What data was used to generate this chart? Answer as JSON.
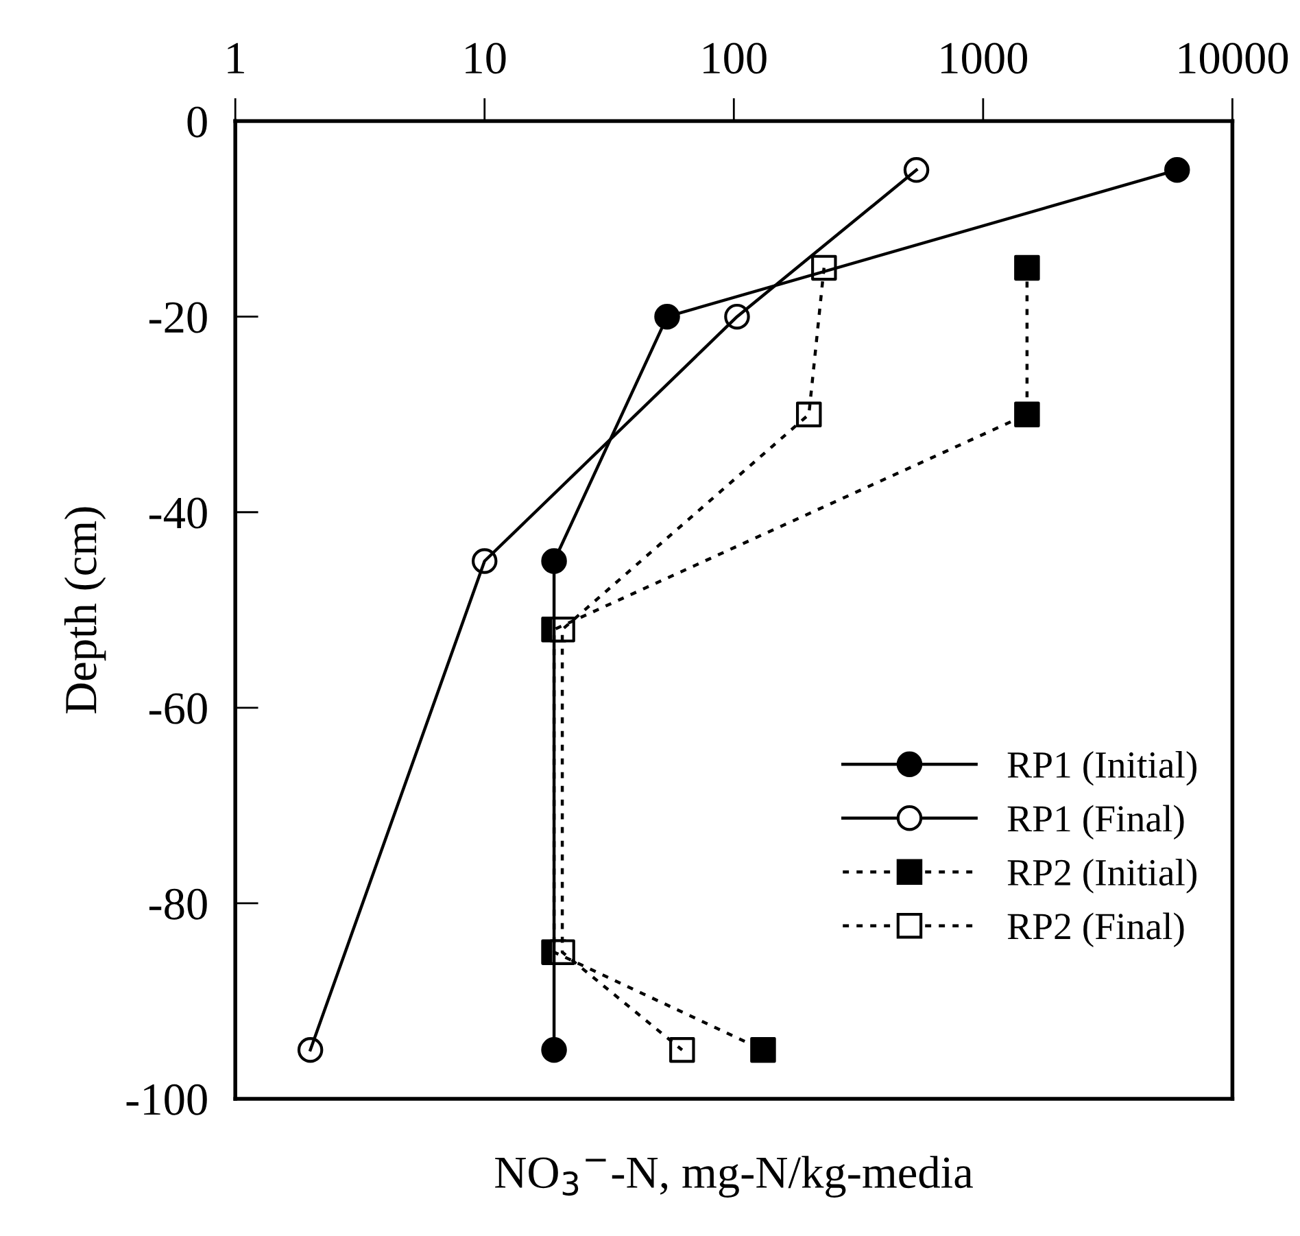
{
  "chart_data": {
    "type": "line",
    "xlabel": "NO$_{3}$$^{−}$-N, mg-N/kg-media",
    "ylabel": "Depth (cm)",
    "log": "x",
    "xlim": [
      1,
      10000
    ],
    "xticks": [
      1,
      10,
      100,
      1000,
      10000
    ],
    "ylim": [
      -100,
      0
    ],
    "yticks": [
      -100,
      -80,
      -60,
      -40,
      -20,
      0
    ],
    "grid": false,
    "legend": "bottom right",
    "series": [
      {
        "name": "RP1 (Initial)",
        "color": "#000000",
        "marker": "circle",
        "colors": [
          "#000000",
          "#000000",
          "#000000",
          "#000000"
        ],
        "line_style": "solid",
        "x": [
          6000,
          54,
          19,
          19
        ],
        "values": [
          -5,
          -20,
          -45,
          -95
        ]
      },
      {
        "name": "RP1 (Final)",
        "color": "#000000",
        "marker": "circle",
        "colors": [
          "#ffffff",
          "#ffffff",
          "#ffffff",
          "#ffffff"
        ],
        "line_style": "solid",
        "x": [
          540,
          103,
          10,
          2
        ],
        "values": [
          -5,
          -20,
          -45,
          -95
        ]
      },
      {
        "name": "RP2 (Initial)",
        "color": "#000000",
        "marker": "square",
        "colors": [
          "#000000",
          "#000000",
          "#000000",
          "#000000",
          "#000000"
        ],
        "line_style": "dotted",
        "x": [
          1500,
          1500,
          19,
          19,
          131
        ],
        "values": [
          -15,
          -30,
          -52,
          -85,
          -95
        ]
      },
      {
        "name": "RP2 (Final)",
        "color": "#000000",
        "marker": "square",
        "colors": [
          "#ffffff",
          "#ffffff",
          "#ffffff",
          "#ffffff",
          "#ffffff"
        ],
        "line_style": "dotted",
        "x": [
          230,
          200,
          20.5,
          20.5,
          62
        ],
        "values": [
          -15,
          -30,
          -52,
          -85,
          -95
        ]
      }
    ]
  }
}
